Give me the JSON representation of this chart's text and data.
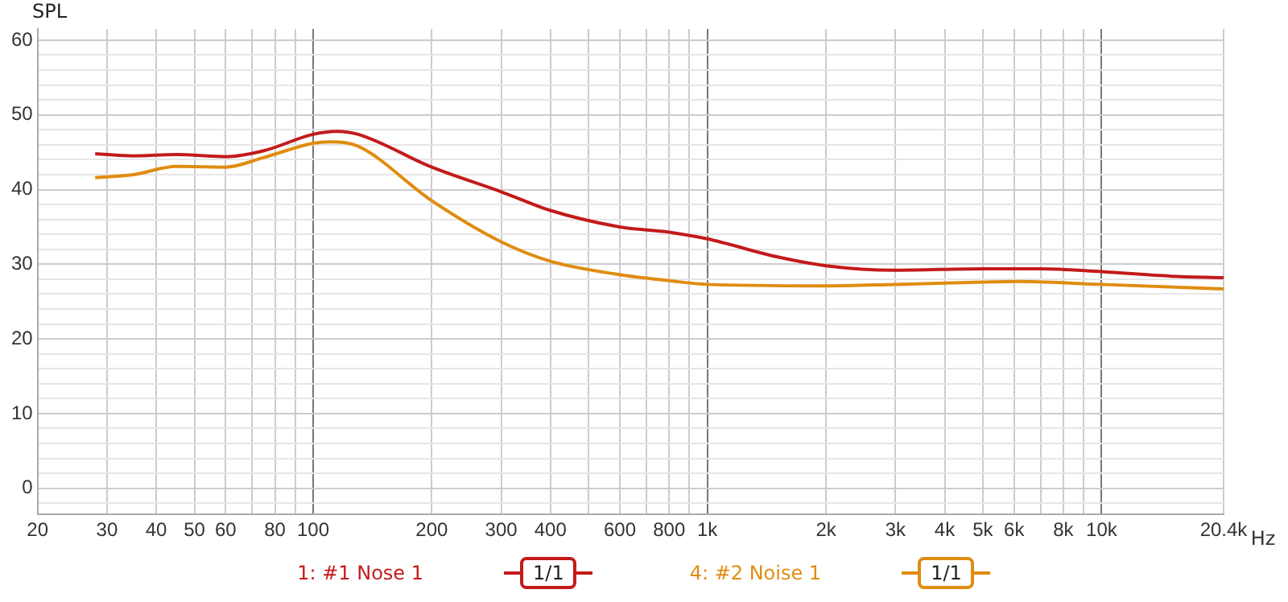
{
  "chart_data": {
    "type": "line",
    "ylabel": "SPL",
    "legend": "bottom",
    "grid": true,
    "line_style": "solid",
    "marker": "none",
    "xlim": [
      20,
      20400
    ],
    "log": "x",
    "xticks": [
      20,
      30,
      40,
      50,
      60,
      {
        "value": 70,
        "label": null
      },
      80,
      {
        "value": 90,
        "label": null
      },
      100,
      200,
      300,
      400,
      {
        "value": 500,
        "label": null
      },
      600,
      {
        "value": 700,
        "label": null
      },
      800,
      {
        "value": 900,
        "label": null
      },
      {
        "value": 1000,
        "label": "1k"
      },
      {
        "value": 2000,
        "label": "2k"
      },
      {
        "value": 3000,
        "label": "3k"
      },
      {
        "value": 4000,
        "label": "4k"
      },
      {
        "value": 5000,
        "label": "5k"
      },
      {
        "value": 6000,
        "label": "6k"
      },
      {
        "value": 7000,
        "label": null
      },
      {
        "value": 8000,
        "label": "8k"
      },
      {
        "value": 9000,
        "label": null
      },
      {
        "value": 10000,
        "label": "10k"
      },
      {
        "value": 20400,
        "label": "20.4k"
      }
    ],
    "xlabel": "Hz",
    "ylim": [
      -3.5,
      61.5
    ],
    "yticks": [
      {
        "value": -2,
        "label": null
      },
      0,
      {
        "value": 2,
        "label": null
      },
      {
        "value": 4,
        "label": null
      },
      {
        "value": 6,
        "label": null
      },
      {
        "value": 8,
        "label": null
      },
      10,
      {
        "value": 12,
        "label": null
      },
      {
        "value": 14,
        "label": null
      },
      {
        "value": 16,
        "label": null
      },
      {
        "value": 18,
        "label": null
      },
      20,
      {
        "value": 22,
        "label": null
      },
      {
        "value": 24,
        "label": null
      },
      {
        "value": 26,
        "label": null
      },
      {
        "value": 28,
        "label": null
      },
      30,
      {
        "value": 32,
        "label": null
      },
      {
        "value": 34,
        "label": null
      },
      {
        "value": 36,
        "label": null
      },
      {
        "value": 38,
        "label": null
      },
      40,
      {
        "value": 42,
        "label": null
      },
      {
        "value": 44,
        "label": null
      },
      {
        "value": 46,
        "label": null
      },
      {
        "value": 48,
        "label": null
      },
      50,
      {
        "value": 52,
        "label": null
      },
      {
        "value": 54,
        "label": null
      },
      {
        "value": 56,
        "label": null
      },
      {
        "value": 58,
        "label": null
      },
      60
    ],
    "annotations": [
      "1/1",
      "1/1"
    ],
    "series": [
      {
        "name": "1: #1 Nose 1",
        "color": "#c41a1a",
        "x": [
          28,
          35,
          45,
          60,
          75,
          100,
          115,
          130,
          200,
          300,
          400,
          600,
          800,
          1000,
          1500,
          2000,
          3000,
          5000,
          7000,
          10000,
          15000,
          20400
        ],
        "values": [
          44.8,
          44.5,
          44.7,
          44.4,
          45.2,
          47.4,
          47.8,
          47.4,
          43.0,
          39.7,
          37.2,
          35.0,
          34.3,
          33.4,
          31.0,
          29.8,
          29.2,
          29.4,
          29.4,
          29.0,
          28.4,
          28.2
        ]
      },
      {
        "name": "4: #2 Noise 1",
        "color": "#e08c10",
        "x": [
          28,
          35,
          45,
          60,
          75,
          100,
          110,
          130,
          200,
          300,
          400,
          600,
          800,
          1000,
          2000,
          3000,
          5000,
          6000,
          10000,
          20400
        ],
        "values": [
          41.6,
          42.0,
          43.1,
          43.0,
          44.3,
          46.2,
          46.4,
          45.8,
          38.5,
          33.0,
          30.4,
          28.6,
          27.8,
          27.3,
          27.1,
          27.3,
          27.6,
          27.7,
          27.3,
          26.7
        ]
      }
    ]
  }
}
